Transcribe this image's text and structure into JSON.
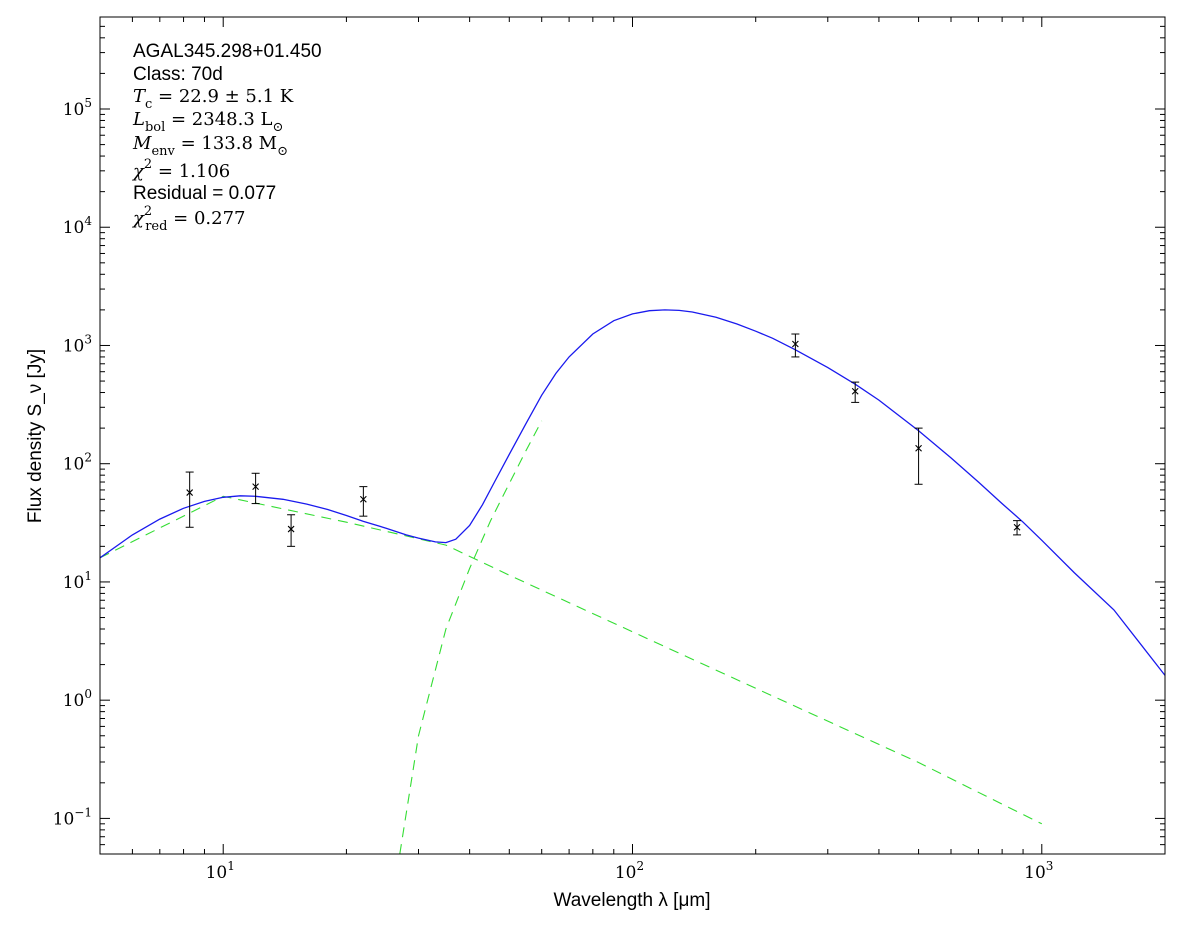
{
  "chart_data": {
    "type": "line",
    "title": "",
    "xlabel": "Wavelength λ [μm]",
    "ylabel": "Flux density S_ν [Jy]",
    "xscale": "log",
    "yscale": "log",
    "xlim": [
      5,
      2000
    ],
    "ylim": [
      0.05,
      600000
    ],
    "grid": false,
    "x_ticks": [
      {
        "value": 10,
        "base": "10",
        "exp": "1"
      },
      {
        "value": 100,
        "base": "10",
        "exp": "2"
      },
      {
        "value": 1000,
        "base": "10",
        "exp": "3"
      }
    ],
    "y_ticks": [
      {
        "value": 0.1,
        "base": "10",
        "exp": "−1"
      },
      {
        "value": 1,
        "base": "10",
        "exp": "0"
      },
      {
        "value": 10,
        "base": "10",
        "exp": "1"
      },
      {
        "value": 100,
        "base": "10",
        "exp": "2"
      },
      {
        "value": 1000,
        "base": "10",
        "exp": "3"
      },
      {
        "value": 10000,
        "base": "10",
        "exp": "4"
      },
      {
        "value": 100000,
        "base": "10",
        "exp": "5"
      }
    ],
    "annotations": [
      {
        "kind": "text",
        "text": "AGAL345.298+01.450"
      },
      {
        "kind": "text",
        "text": "Class: 70d"
      },
      {
        "kind": "math",
        "parts": [
          [
            "T",
            "i"
          ],
          [
            "c",
            "sub"
          ],
          [
            " = 22.9 ± 5.1 K",
            "n"
          ]
        ]
      },
      {
        "kind": "math",
        "parts": [
          [
            "L",
            "i"
          ],
          [
            "bol",
            "sub"
          ],
          [
            " = 2348.3 L",
            "n"
          ],
          [
            "⊙",
            "sub"
          ]
        ]
      },
      {
        "kind": "math",
        "parts": [
          [
            "M",
            "i"
          ],
          [
            "env",
            "sub"
          ],
          [
            " = 133.8 M",
            "n"
          ],
          [
            "⊙",
            "sub"
          ]
        ]
      },
      {
        "kind": "math",
        "parts": [
          [
            "χ",
            "i"
          ],
          [
            "2",
            "sup"
          ],
          [
            " = 1.106",
            "n"
          ]
        ]
      },
      {
        "kind": "text",
        "text": "Residual = 0.077"
      },
      {
        "kind": "math",
        "parts": [
          [
            "χ",
            "i"
          ],
          [
            "2",
            "sup"
          ],
          [
            "red",
            "sub"
          ],
          [
            " = 0.277",
            "n"
          ]
        ]
      }
    ],
    "series": [
      {
        "style": "dashed",
        "color": "#33dd33",
        "x": [
          5,
          10,
          20,
          35,
          50,
          100,
          200,
          500,
          850,
          1000
        ],
        "y": [
          16.0,
          53.0,
          32.0,
          20.5,
          11.4,
          3.79,
          1.26,
          0.297,
          0.119,
          0.09
        ]
      },
      {
        "style": "dashed",
        "color": "#33dd33",
        "x": [
          27,
          30,
          35,
          40,
          45,
          50,
          55,
          60
        ],
        "y": [
          0.05,
          0.5,
          4,
          13,
          33,
          68,
          130,
          230
        ]
      },
      {
        "style": "solid",
        "color": "#1a1aee",
        "x": [
          5,
          6,
          7,
          8,
          9,
          10,
          11,
          12,
          14,
          16,
          18,
          20,
          22,
          25,
          28,
          30,
          33,
          35,
          37,
          40,
          43,
          46,
          50,
          55,
          60,
          65,
          70,
          80,
          90,
          100,
          110,
          120,
          130,
          140,
          160,
          180,
          200,
          220,
          250,
          300,
          350,
          400,
          500,
          600,
          700,
          800,
          900,
          1000,
          1200,
          1500,
          2000
        ],
        "y": [
          16.0,
          25.0,
          34.0,
          42.0,
          48.0,
          52.0,
          53.5,
          53.0,
          50.0,
          45.5,
          41.0,
          36.5,
          32.5,
          28.5,
          25.0,
          23.5,
          21.8,
          21.5,
          23.0,
          30.0,
          45.0,
          70.0,
          120.0,
          220.0,
          380.0,
          580.0,
          800.0,
          1250.0,
          1620.0,
          1850.0,
          1970.0,
          2000.0,
          1980.0,
          1920.0,
          1730.0,
          1520.0,
          1320.0,
          1150.0,
          920.0,
          650.0,
          470.0,
          345.0,
          190.0,
          112.0,
          70.0,
          46.0,
          32.0,
          22.5,
          12.0,
          5.8,
          1.62
        ]
      }
    ],
    "points": [
      {
        "x": 8.28,
        "y": 57,
        "lo": 29,
        "hi": 85
      },
      {
        "x": 12.0,
        "y": 64,
        "lo": 46,
        "hi": 83
      },
      {
        "x": 14.65,
        "y": 28,
        "lo": 20,
        "hi": 37
      },
      {
        "x": 22.0,
        "y": 50,
        "lo": 36,
        "hi": 64
      },
      {
        "x": 250,
        "y": 1030,
        "lo": 800,
        "hi": 1250
      },
      {
        "x": 350,
        "y": 410,
        "lo": 330,
        "hi": 490
      },
      {
        "x": 500,
        "y": 135,
        "lo": 67,
        "hi": 200
      },
      {
        "x": 870,
        "y": 29,
        "lo": 25,
        "hi": 33
      }
    ]
  }
}
